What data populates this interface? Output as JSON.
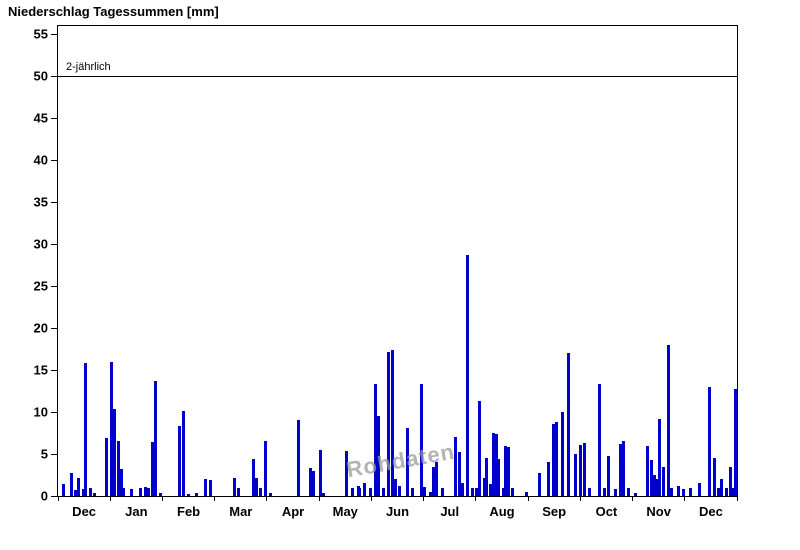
{
  "watermark": "Rohdaten",
  "colors": {
    "bar": "#0000cc",
    "threshold": "#000000",
    "watermark": "#9a9a9a",
    "background": "#ffffff"
  },
  "chart_data": {
    "type": "bar",
    "title": "Niederschlag Tagessummen [mm]",
    "xlabel": "",
    "ylabel": "",
    "ylim": [
      0,
      56
    ],
    "yticks": [
      0,
      5,
      10,
      15,
      20,
      25,
      30,
      35,
      40,
      45,
      50,
      55
    ],
    "x_months": [
      "Dec",
      "Jan",
      "Feb",
      "Mar",
      "Apr",
      "May",
      "Jun",
      "Jul",
      "Aug",
      "Sep",
      "Oct",
      "Nov",
      "Dec"
    ],
    "x_span_days": 396,
    "grid": false,
    "legend": "none",
    "threshold_line": {
      "y": 50,
      "label": "2-jährlich"
    },
    "points_unit": "[day_index_from_start_Dec, precipitation_mm]",
    "points": [
      [
        3,
        1.4
      ],
      [
        8,
        2.8
      ],
      [
        10,
        0.7
      ],
      [
        12,
        2.1
      ],
      [
        15,
        0.8
      ],
      [
        16,
        15.8
      ],
      [
        19,
        0.9
      ],
      [
        21,
        0.4
      ],
      [
        28,
        6.9
      ],
      [
        31,
        16.0
      ],
      [
        33,
        10.4
      ],
      [
        35,
        6.6
      ],
      [
        37,
        3.2
      ],
      [
        38,
        0.9
      ],
      [
        43,
        0.8
      ],
      [
        48,
        1.0
      ],
      [
        51,
        1.1
      ],
      [
        53,
        0.9
      ],
      [
        55,
        6.4
      ],
      [
        57,
        13.7
      ],
      [
        60,
        0.3
      ],
      [
        71,
        8.3
      ],
      [
        73,
        10.1
      ],
      [
        76,
        0.2
      ],
      [
        81,
        0.4
      ],
      [
        86,
        2.0
      ],
      [
        89,
        1.9
      ],
      [
        103,
        2.1
      ],
      [
        105,
        1.0
      ],
      [
        114,
        4.4
      ],
      [
        116,
        2.2
      ],
      [
        118,
        1.0
      ],
      [
        121,
        6.6
      ],
      [
        124,
        0.3
      ],
      [
        140,
        9.0
      ],
      [
        147,
        3.3
      ],
      [
        149,
        3.0
      ],
      [
        153,
        5.5
      ],
      [
        155,
        0.4
      ],
      [
        168,
        5.4
      ],
      [
        172,
        0.9
      ],
      [
        175,
        1.2
      ],
      [
        176,
        1.0
      ],
      [
        179,
        1.5
      ],
      [
        182,
        1.0
      ],
      [
        185,
        13.4
      ],
      [
        187,
        9.5
      ],
      [
        190,
        1.0
      ],
      [
        193,
        17.2
      ],
      [
        195,
        17.4
      ],
      [
        197,
        2.0
      ],
      [
        199,
        1.2
      ],
      [
        204,
        8.1
      ],
      [
        207,
        1.0
      ],
      [
        212,
        13.3
      ],
      [
        214,
        1.1
      ],
      [
        217,
        0.5
      ],
      [
        219,
        3.5
      ],
      [
        221,
        4.0
      ],
      [
        224,
        1.0
      ],
      [
        232,
        7.0
      ],
      [
        234,
        5.2
      ],
      [
        236,
        1.5
      ],
      [
        239,
        28.7
      ],
      [
        242,
        1.0
      ],
      [
        244,
        0.9
      ],
      [
        246,
        11.3
      ],
      [
        249,
        2.1
      ],
      [
        250,
        4.5
      ],
      [
        252,
        1.4
      ],
      [
        254,
        7.5
      ],
      [
        256,
        7.4
      ],
      [
        257,
        4.4
      ],
      [
        260,
        1.0
      ],
      [
        261,
        6.0
      ],
      [
        263,
        5.8
      ],
      [
        265,
        1.0
      ],
      [
        273,
        0.5
      ],
      [
        281,
        2.7
      ],
      [
        286,
        4.0
      ],
      [
        289,
        8.6
      ],
      [
        291,
        8.8
      ],
      [
        294,
        10.0
      ],
      [
        298,
        17.0
      ],
      [
        302,
        5.0
      ],
      [
        305,
        6.1
      ],
      [
        307,
        6.3
      ],
      [
        310,
        1.0
      ],
      [
        316,
        13.4
      ],
      [
        319,
        1.0
      ],
      [
        321,
        4.8
      ],
      [
        325,
        0.8
      ],
      [
        328,
        6.2
      ],
      [
        330,
        6.6
      ],
      [
        333,
        1.0
      ],
      [
        337,
        0.4
      ],
      [
        344,
        6.0
      ],
      [
        346,
        4.3
      ],
      [
        348,
        2.5
      ],
      [
        349,
        2.0
      ],
      [
        351,
        9.2
      ],
      [
        353,
        3.5
      ],
      [
        356,
        18.0
      ],
      [
        358,
        1.0
      ],
      [
        362,
        1.2
      ],
      [
        365,
        0.8
      ],
      [
        369,
        1.0
      ],
      [
        374,
        1.5
      ],
      [
        380,
        13.0
      ],
      [
        383,
        4.5
      ],
      [
        385,
        1.0
      ],
      [
        387,
        2.0
      ],
      [
        390,
        1.0
      ],
      [
        392,
        3.5
      ],
      [
        394,
        1.0
      ],
      [
        395,
        12.8
      ]
    ]
  }
}
